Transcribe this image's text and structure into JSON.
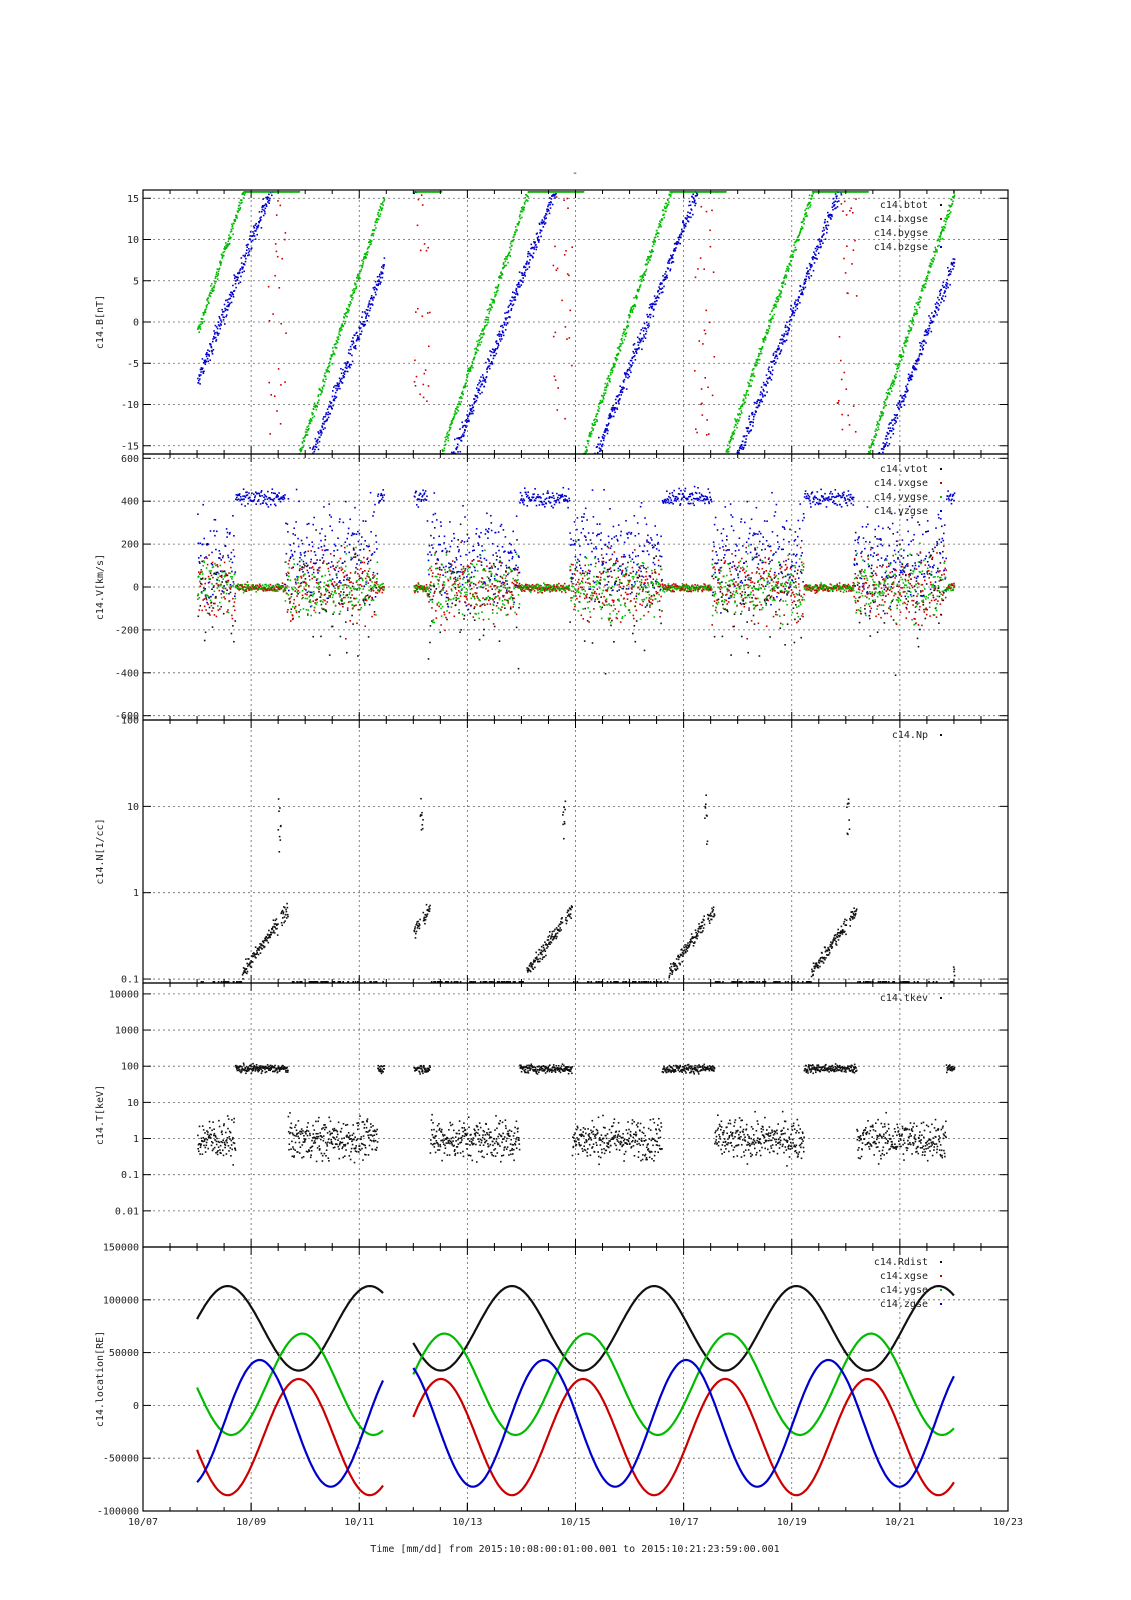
{
  "top_mark": "-",
  "xaxis": {
    "tick_labels": [
      "10/07",
      "10/09",
      "10/11",
      "10/13",
      "10/15",
      "10/17",
      "10/19",
      "10/21",
      "10/23"
    ],
    "label": "Time [mm/dd]  from 2015:10:08:00:01:00.001  to  2015:10:21:23:59:00.001",
    "range_days": [
      0,
      16
    ],
    "start_label_date": "2015-10-07"
  },
  "colors": {
    "black": "#111111",
    "red": "#cc0000",
    "green": "#00bb00",
    "blue": "#0000cc"
  },
  "chart_data": [
    {
      "type": "scatter",
      "ylabel": "c14.B[nT]",
      "ylim": [
        -16,
        16
      ],
      "yticks": [
        -15,
        -10,
        -5,
        0,
        5,
        10,
        15
      ],
      "ytick_labels": [
        "-15",
        "-10",
        "-5",
        "0",
        "5",
        "10",
        "15"
      ],
      "grid": true,
      "legend_placement": "top-right",
      "series": [
        {
          "name": "c14.btot",
          "color": "black"
        },
        {
          "name": "c14.bxgse",
          "color": "red"
        },
        {
          "name": "c14.bygse",
          "color": "green"
        },
        {
          "name": "c14.bzgse",
          "color": "blue"
        }
      ]
    },
    {
      "type": "scatter",
      "ylabel": "c14.V[km/s]",
      "ylim": [
        -620,
        620
      ],
      "yticks": [
        -600,
        -400,
        -200,
        0,
        200,
        400,
        600
      ],
      "ytick_labels": [
        "-600",
        "-400",
        "-200",
        "0",
        "200",
        "400",
        "600"
      ],
      "grid": true,
      "legend_placement": "top-right",
      "series": [
        {
          "name": "c14.vtot",
          "color": "black"
        },
        {
          "name": "c14.vxgse",
          "color": "red"
        },
        {
          "name": "c14.vygse",
          "color": "green"
        },
        {
          "name": "c14.vzgse",
          "color": "blue"
        }
      ]
    },
    {
      "type": "scatter",
      "ylabel": "c14.N[1/cc]",
      "scale": "log",
      "ylim": [
        0.09,
        100
      ],
      "yticks": [
        0.1,
        1,
        10,
        100
      ],
      "ytick_labels": [
        "0.1",
        "1",
        "10",
        "100"
      ],
      "grid": true,
      "legend_placement": "top-right",
      "series": [
        {
          "name": "c14.Np",
          "color": "black"
        }
      ]
    },
    {
      "type": "scatter",
      "ylabel": "c14.T[keV]",
      "scale": "log",
      "ylim": [
        0.001,
        20000
      ],
      "yticks": [
        0.01,
        0.1,
        1,
        10,
        100,
        1000,
        10000
      ],
      "ytick_labels": [
        "0.01",
        "0.1",
        "1",
        "10",
        "100",
        "1000",
        "10000"
      ],
      "grid": true,
      "legend_placement": "top-right",
      "series": [
        {
          "name": "c14.tkev",
          "color": "black"
        }
      ]
    },
    {
      "type": "line",
      "ylabel": "c14.location[RE]",
      "ylim": [
        -100000,
        150000
      ],
      "yticks": [
        -100000,
        -50000,
        0,
        50000,
        100000,
        150000
      ],
      "ytick_labels": [
        "-100000",
        "-50000",
        "0",
        "50000",
        "100000",
        "150000"
      ],
      "grid": true,
      "legend_placement": "top-right",
      "series": [
        {
          "name": "c14.Rdist",
          "color": "black"
        },
        {
          "name": "c14.xgse",
          "color": "red"
        },
        {
          "name": "c14.ygse",
          "color": "green"
        },
        {
          "name": "c14.zgse",
          "color": "blue"
        }
      ]
    }
  ]
}
